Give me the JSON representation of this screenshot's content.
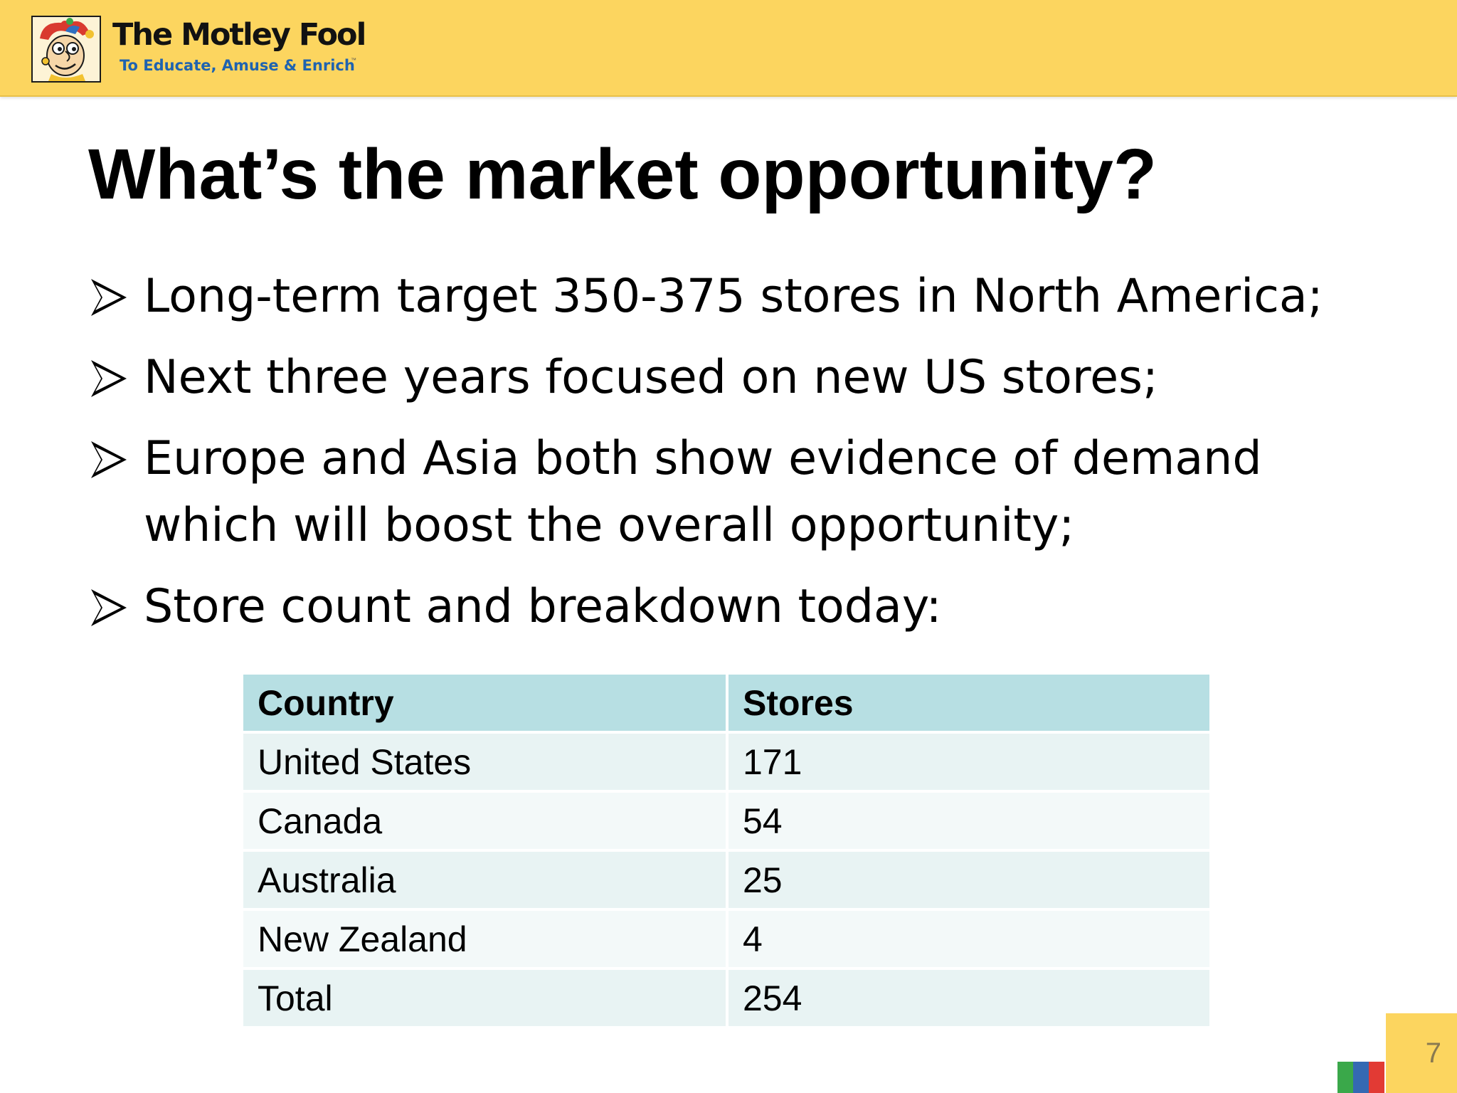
{
  "header": {
    "brand": {
      "name": "The Motley Fool",
      "tagline": "To Educate, Amuse & Enrich",
      "mascot_icon": "jester-mascot-icon",
      "band_color": "#fcd55f",
      "tagline_color": "#1f63b0"
    }
  },
  "slide": {
    "title": "What’s the market opportunity?",
    "bullets": [
      "Long-term target 350-375 stores in North America;",
      "Next three years focused on new US stores;",
      "Europe and Asia both show evidence of demand which will boost the overall opportunity;",
      "Store count and breakdown today:"
    ],
    "bullet_icon": "arrow-bullet-icon",
    "table": {
      "headers": [
        "Country",
        "Stores"
      ],
      "rows": [
        [
          "United States",
          "171"
        ],
        [
          "Canada",
          "54"
        ],
        [
          "Australia",
          "25"
        ],
        [
          "New Zealand",
          "4"
        ],
        [
          "Total",
          "254"
        ]
      ],
      "header_color": "#b7dfe3"
    },
    "page_number": "7",
    "footer_colors": [
      "#3aa84a",
      "#3469b3",
      "#e23a34"
    ]
  }
}
